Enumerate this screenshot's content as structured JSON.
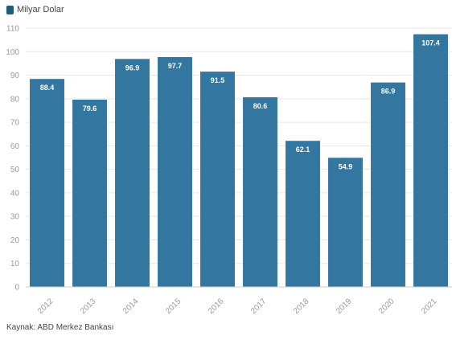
{
  "chart_data": {
    "type": "bar",
    "categories": [
      "2012",
      "2013",
      "2014",
      "2015",
      "2016",
      "2017",
      "2018",
      "2019",
      "2020",
      "2021"
    ],
    "series": [
      {
        "name": "Milyar Dolar",
        "values": [
          88.4,
          79.6,
          96.9,
          97.7,
          91.5,
          80.6,
          62.1,
          54.9,
          86.9,
          107.4
        ]
      }
    ],
    "value_labels": [
      "88.4",
      "79.6",
      "96.9",
      "97.7",
      "91.5",
      "80.6",
      "62.1",
      "54.9",
      "86.9",
      "107.4"
    ],
    "yticks": [
      0,
      10,
      20,
      30,
      40,
      50,
      60,
      70,
      80,
      90,
      100,
      110
    ],
    "ylim": [
      0,
      110
    ],
    "grid": true,
    "legend": "top-left",
    "bar_color": "#33769f",
    "xlabel": "",
    "ylabel": "",
    "title": ""
  },
  "legend": {
    "label": "Milyar Dolar",
    "color": "#1f5c7d"
  },
  "source": "Kaynak: ABD Merkez Bankası"
}
